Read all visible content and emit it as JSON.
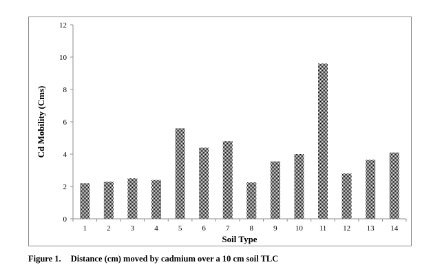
{
  "chart_data": {
    "type": "bar",
    "categories": [
      "1",
      "2",
      "3",
      "4",
      "5",
      "6",
      "7",
      "8",
      "9",
      "10",
      "11",
      "12",
      "13",
      "14"
    ],
    "values": [
      2.2,
      2.3,
      2.5,
      2.4,
      5.6,
      4.4,
      4.8,
      2.25,
      3.55,
      4.0,
      9.6,
      2.8,
      3.65,
      4.1
    ],
    "title": "",
    "xlabel": "Soil Type",
    "ylabel": "Cd Mobility  (Cms)",
    "ylim": [
      0,
      12
    ],
    "yticks": [
      0,
      2,
      4,
      6,
      8,
      10,
      12
    ],
    "grid": false,
    "legend": "none",
    "bar_pattern": "dense checker hatch",
    "bar_color": "#000000"
  },
  "caption": {
    "number": "Figure 1.",
    "text": "Distance (cm) moved by cadmium over a 10 cm soil TLC"
  }
}
